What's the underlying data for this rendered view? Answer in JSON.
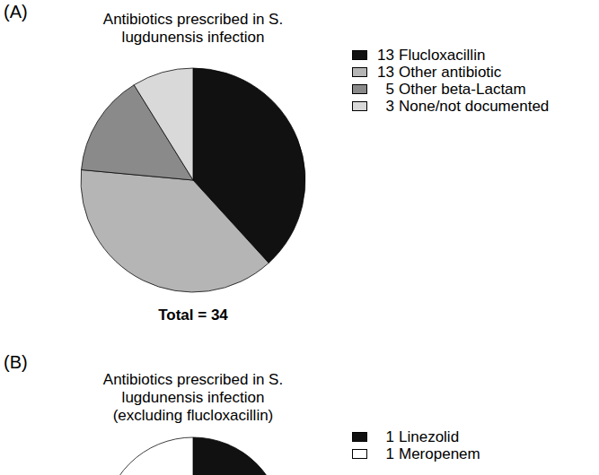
{
  "chart_data": [
    {
      "type": "pie",
      "label": "(A)",
      "title": "Antibiotics prescribed in S. lugdunensis infection",
      "categories": [
        "Flucloxacillin",
        "Other antibiotic",
        "Other beta-Lactam",
        "None/not documented"
      ],
      "values": [
        13,
        13,
        5,
        3
      ],
      "colors": [
        "#111111",
        "#b5b5b5",
        "#8a8a8a",
        "#d9d9d9"
      ],
      "legend": "right",
      "caption": "Total = 34"
    },
    {
      "type": "pie",
      "label": "(B)",
      "title": "Antibiotics prescribed in S. lugdunensis infection (excluding flucloxacillin)",
      "categories": [
        "Linezolid",
        "Meropenem"
      ],
      "values": [
        1,
        1
      ],
      "colors": [
        "#111111",
        "#ffffff"
      ],
      "legend": "right"
    }
  ]
}
